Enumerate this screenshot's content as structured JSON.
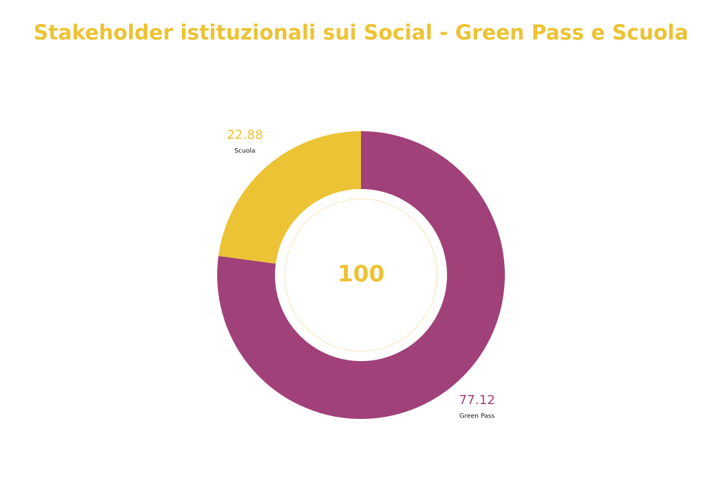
{
  "chart_data": {
    "type": "donut",
    "title": "Stakeholder istituzionali sui Social - Green Pass e Scuola",
    "categories": [
      "Green Pass",
      "Scuola"
    ],
    "values": [
      77.12,
      22.88
    ],
    "colors": [
      "#a1417a",
      "#ecc334"
    ],
    "total": 100
  }
}
